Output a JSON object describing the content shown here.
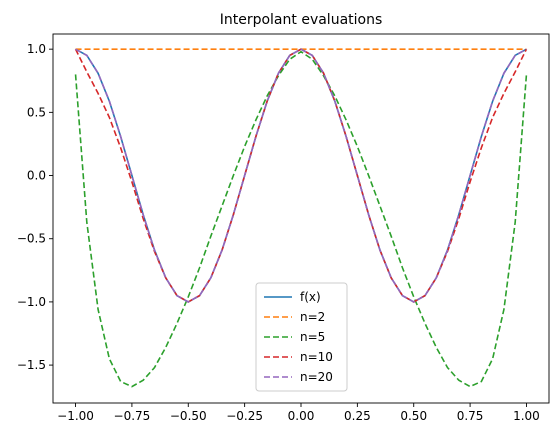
{
  "chart_data": {
    "type": "line",
    "title": "Interpolant evaluations",
    "xlabel": "",
    "ylabel": "",
    "xlim": [
      -1.1,
      1.1
    ],
    "ylim": [
      -1.8,
      1.12
    ],
    "x_ticks": [
      -1.0,
      -0.75,
      -0.5,
      -0.25,
      0.0,
      0.25,
      0.5,
      0.75,
      1.0
    ],
    "x_tick_labels": [
      "−1.00",
      "−0.75",
      "−0.50",
      "−0.25",
      "0.00",
      "0.25",
      "0.50",
      "0.75",
      "1.00"
    ],
    "y_ticks": [
      -1.5,
      -1.0,
      -0.5,
      0.0,
      0.5,
      1.0
    ],
    "y_tick_labels": [
      "−1.5",
      "−1.0",
      "−0.5",
      "0.0",
      "0.5",
      "1.0"
    ],
    "grid": false,
    "legend_position": "lower-center",
    "series": [
      {
        "name": "f(x)",
        "color": "#1f77b4",
        "dash": "solid",
        "x": [
          -1.0,
          -0.95,
          -0.9,
          -0.85,
          -0.8,
          -0.75,
          -0.7,
          -0.65,
          -0.6,
          -0.55,
          -0.5,
          -0.45,
          -0.4,
          -0.35,
          -0.3,
          -0.25,
          -0.2,
          -0.15,
          -0.1,
          -0.05,
          0.0,
          0.05,
          0.1,
          0.15,
          0.2,
          0.25,
          0.3,
          0.35,
          0.4,
          0.45,
          0.5,
          0.55,
          0.6,
          0.65,
          0.7,
          0.75,
          0.8,
          0.85,
          0.9,
          0.95,
          1.0
        ],
        "y": [
          1.0,
          0.951,
          0.809,
          0.588,
          0.309,
          0.0,
          -0.309,
          -0.588,
          -0.809,
          -0.951,
          -1.0,
          -0.951,
          -0.809,
          -0.588,
          -0.309,
          0.0,
          0.309,
          0.588,
          0.809,
          0.951,
          1.0,
          0.951,
          0.809,
          0.588,
          0.309,
          0.0,
          -0.309,
          -0.588,
          -0.809,
          -0.951,
          -1.0,
          -0.951,
          -0.809,
          -0.588,
          -0.309,
          0.0,
          0.309,
          0.588,
          0.809,
          0.951,
          1.0
        ]
      },
      {
        "name": "n=2",
        "color": "#ff7f0e",
        "dash": "dashed",
        "x": [
          -1.0,
          1.0
        ],
        "y": [
          1.0,
          1.0
        ]
      },
      {
        "name": "n=5",
        "color": "#2ca02c",
        "dash": "dashed",
        "x": [
          -1.0,
          -0.95,
          -0.9,
          -0.85,
          -0.8,
          -0.75,
          -0.7,
          -0.65,
          -0.6,
          -0.55,
          -0.5,
          -0.45,
          -0.4,
          -0.35,
          -0.3,
          -0.25,
          -0.2,
          -0.15,
          -0.1,
          -0.05,
          0.0,
          0.05,
          0.1,
          0.15,
          0.2,
          0.25,
          0.3,
          0.35,
          0.4,
          0.45,
          0.5,
          0.55,
          0.6,
          0.65,
          0.7,
          0.75,
          0.8,
          0.85,
          0.9,
          0.95,
          1.0
        ],
        "y": [
          0.8,
          -0.37,
          -1.06,
          -1.45,
          -1.63,
          -1.67,
          -1.62,
          -1.52,
          -1.36,
          -1.17,
          -0.96,
          -0.73,
          -0.48,
          -0.24,
          0.0,
          0.23,
          0.44,
          0.63,
          0.79,
          0.92,
          0.98,
          0.92,
          0.79,
          0.63,
          0.44,
          0.23,
          0.0,
          -0.24,
          -0.48,
          -0.73,
          -0.96,
          -1.17,
          -1.36,
          -1.52,
          -1.62,
          -1.67,
          -1.63,
          -1.45,
          -1.06,
          -0.37,
          0.8
        ]
      },
      {
        "name": "n=10",
        "color": "#d62728",
        "dash": "dashed",
        "x": [
          -1.0,
          -0.95,
          -0.9,
          -0.85,
          -0.8,
          -0.75,
          -0.7,
          -0.65,
          -0.6,
          -0.55,
          -0.5,
          -0.45,
          -0.4,
          -0.35,
          -0.3,
          -0.25,
          -0.2,
          -0.15,
          -0.1,
          -0.05,
          0.0,
          0.05,
          0.1,
          0.15,
          0.2,
          0.25,
          0.3,
          0.35,
          0.4,
          0.45,
          0.5,
          0.55,
          0.6,
          0.65,
          0.7,
          0.75,
          0.8,
          0.85,
          0.9,
          0.95,
          1.0
        ],
        "y": [
          1.0,
          0.82,
          0.65,
          0.46,
          0.22,
          -0.05,
          -0.34,
          -0.6,
          -0.81,
          -0.95,
          -1.0,
          -0.95,
          -0.81,
          -0.59,
          -0.31,
          0.0,
          0.31,
          0.59,
          0.81,
          0.95,
          1.0,
          0.95,
          0.81,
          0.59,
          0.31,
          0.0,
          -0.31,
          -0.59,
          -0.81,
          -0.95,
          -1.0,
          -0.95,
          -0.81,
          -0.6,
          -0.34,
          -0.05,
          0.22,
          0.46,
          0.65,
          0.82,
          1.0
        ]
      },
      {
        "name": "n=20",
        "color": "#9467bd",
        "dash": "dashed",
        "x": [
          -1.0,
          -0.95,
          -0.9,
          -0.85,
          -0.8,
          -0.75,
          -0.7,
          -0.65,
          -0.6,
          -0.55,
          -0.5,
          -0.45,
          -0.4,
          -0.35,
          -0.3,
          -0.25,
          -0.2,
          -0.15,
          -0.1,
          -0.05,
          0.0,
          0.05,
          0.1,
          0.15,
          0.2,
          0.25,
          0.3,
          0.35,
          0.4,
          0.45,
          0.5,
          0.55,
          0.6,
          0.65,
          0.7,
          0.75,
          0.8,
          0.85,
          0.9,
          0.95,
          1.0
        ],
        "y": [
          1.0,
          0.95,
          0.81,
          0.59,
          0.31,
          0.0,
          -0.31,
          -0.59,
          -0.81,
          -0.95,
          -1.0,
          -0.95,
          -0.81,
          -0.59,
          -0.31,
          0.0,
          0.31,
          0.59,
          0.81,
          0.95,
          1.0,
          0.95,
          0.81,
          0.59,
          0.31,
          0.0,
          -0.31,
          -0.59,
          -0.81,
          -0.95,
          -1.0,
          -0.95,
          -0.81,
          -0.59,
          -0.31,
          0.0,
          0.31,
          0.59,
          0.81,
          0.95,
          1.0
        ]
      }
    ]
  }
}
